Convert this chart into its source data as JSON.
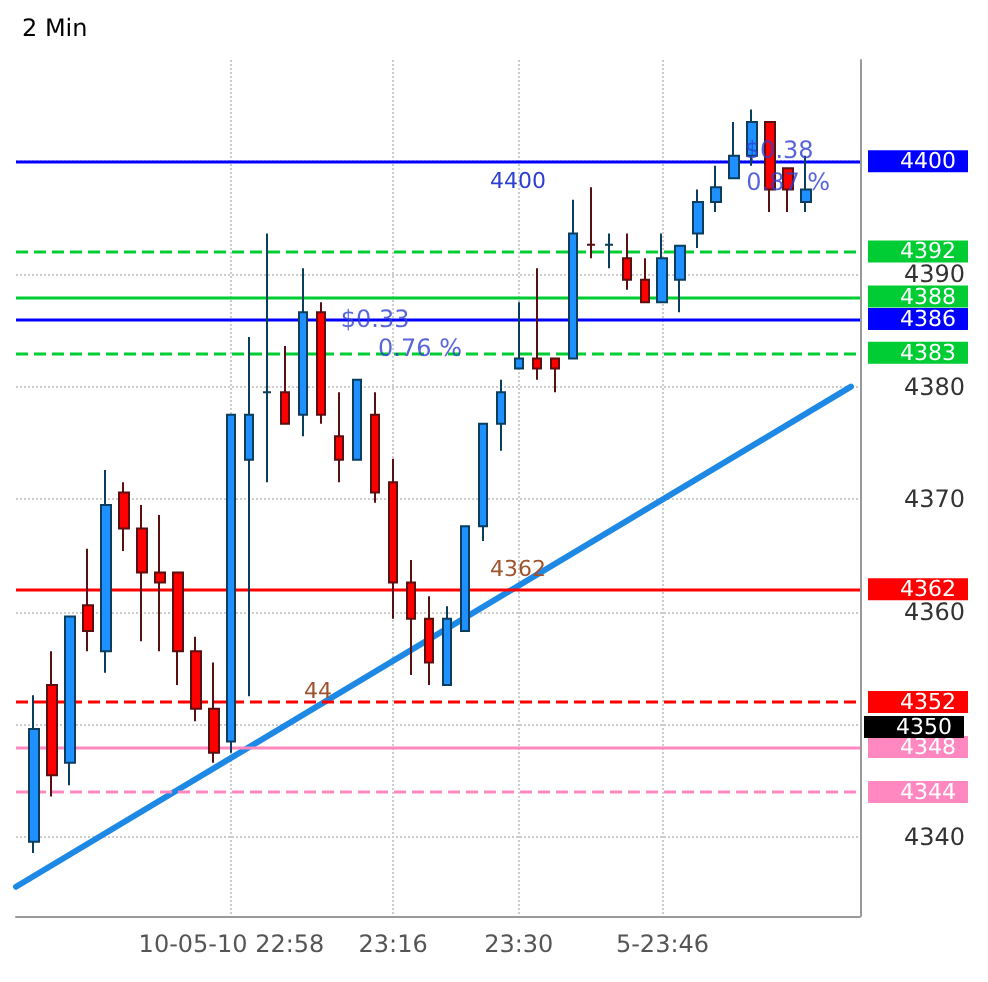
{
  "chart_data": {
    "type": "candlestick",
    "title": "2 Min",
    "x": [
      "--10-05T22:36",
      "--10-05T22:38",
      "--10-05T22:40",
      "--10-05T22:42",
      "--10-05T22:44",
      "--10-05T22:46",
      "--10-05T22:48",
      "--10-05T22:50",
      "--10-05T22:52",
      "--10-05T22:54",
      "--10-05T22:56",
      "--10-05T22:58",
      "--10-05T23:00",
      "--10-05T23:02",
      "--10-05T23:04",
      "--10-05T23:06",
      "--10-05T23:08",
      "--10-05T23:10",
      "--10-05T23:12",
      "--10-05T23:14",
      "--10-05T23:16",
      "--10-05T23:18",
      "--10-05T23:20",
      "--10-05T23:22",
      "--10-05T23:24",
      "--10-05T23:26",
      "--10-05T23:28",
      "--10-05T23:30",
      "--10-05T23:32",
      "--10-05T23:34",
      "--10-05T23:36",
      "--10-05T23:38",
      "--10-05T23:40",
      "--10-05T23:42",
      "--10-05T23:44",
      "--10-05T23:46",
      "--10-05T23:48",
      "--10-05T23:50",
      "--10-05T23:52",
      "--10-05T23:54",
      "--10-05T23:56",
      "--10-05T23:58",
      "--10-06T00:00",
      "--10-06T00:02"
    ],
    "ohlc": [
      [
        4339.6,
        4352.6,
        4338.6,
        4349.6
      ],
      [
        4353.5,
        4356.5,
        4343.6,
        4345.5
      ],
      [
        4346.6,
        4359.6,
        4344.6,
        4359.6
      ],
      [
        4360.6,
        4365.6,
        4356.5,
        4358.3
      ],
      [
        4356.5,
        4372.6,
        4354.6,
        4369.5
      ],
      [
        4370.6,
        4371.5,
        4365.4,
        4367.4
      ],
      [
        4367.4,
        4369.5,
        4357.4,
        4363.5
      ],
      [
        4363.5,
        4368.6,
        4356.5,
        4362.6
      ],
      [
        4363.5,
        4363.5,
        4353.5,
        4356.5
      ],
      [
        4356.5,
        4357.8,
        4350.3,
        4351.4
      ],
      [
        4351.4,
        4355.5,
        4346.6,
        4347.5
      ],
      [
        4348.5,
        4377.5,
        4347.5,
        4377.5
      ],
      [
        4373.5,
        4384.4,
        4352.5,
        4377.5
      ],
      [
        4379.5,
        4393.6,
        4371.5,
        4379.5
      ],
      [
        4379.5,
        4383.6,
        4376.7,
        4376.7
      ],
      [
        4377.5,
        4390.5,
        4375.6,
        4386.6
      ],
      [
        4386.6,
        4387.5,
        4376.7,
        4377.5
      ],
      [
        4375.6,
        4379.5,
        4371.5,
        4373.5
      ],
      [
        4373.5,
        4380.6,
        4373.5,
        4380.6
      ],
      [
        4377.5,
        4379.5,
        4369.7,
        4370.6
      ],
      [
        4371.5,
        4373.6,
        4359.4,
        4362.6
      ],
      [
        4362.6,
        4364.6,
        4354.4,
        4359.4
      ],
      [
        4359.4,
        4361.4,
        4353.5,
        4355.5
      ],
      [
        4353.5,
        4360.5,
        4353.5,
        4359.4
      ],
      [
        4358.3,
        4367.6,
        4358.3,
        4367.6
      ],
      [
        4367.6,
        4376.7,
        4366.3,
        4376.7
      ],
      [
        4376.7,
        4380.6,
        4374.3,
        4379.5
      ],
      [
        4381.6,
        4387.5,
        4381.6,
        4382.5
      ],
      [
        4382.5,
        4390.5,
        4380.6,
        4381.6
      ],
      [
        4382.5,
        4382.5,
        4379.5,
        4381.6
      ],
      [
        4382.5,
        4396.6,
        4382.5,
        4393.6
      ],
      [
        4392.6,
        4397.7,
        4391.4,
        4392.6
      ],
      [
        4392.6,
        4393.6,
        4390.5,
        4392.6
      ],
      [
        4391.4,
        4393.6,
        4388.6,
        4389.5
      ],
      [
        4389.5,
        4391.4,
        4387.5,
        4387.5
      ],
      [
        4387.5,
        4393.6,
        4387.5,
        4391.4
      ],
      [
        4389.5,
        4392.5,
        4386.6,
        4392.5
      ],
      [
        4393.6,
        4397.5,
        4392.3,
        4396.4
      ],
      [
        4396.4,
        4399.6,
        4395.5,
        4397.7
      ],
      [
        4398.5,
        4403.5,
        4398.5,
        4400.5
      ],
      [
        4400.5,
        4404.6,
        4399.6,
        4403.5
      ],
      [
        4403.5,
        4403.5,
        4395.5,
        4397.5
      ],
      [
        4399.4,
        4399.4,
        4395.5,
        4397.5
      ],
      [
        4396.4,
        4400.5,
        4395.5,
        4397.5
      ]
    ],
    "series": [
      {
        "type": "line",
        "color": "#1e88e5",
        "x": [
          "--10-05T22:34",
          "--10-06T00:07"
        ],
        "values": [
          4335.6,
          4380
        ]
      }
    ],
    "xlim": [
      "--10-05T22:34",
      "--10-06T00:08"
    ],
    "xticks": [
      {
        "value": "--10-05T22:58",
        "label": "10-05-10 22:58"
      },
      {
        "value": "--10-05T23:16",
        "label": "23:16"
      },
      {
        "value": "--10-05T23:30",
        "label": "23:30"
      },
      {
        "value": "--10-05T23:46",
        "label": "5-23:46"
      }
    ],
    "ylim": [
      4333,
      4409
    ],
    "yticks": [
      4340,
      {
        "value": 4350,
        "label": null
      },
      4360,
      4370,
      4380,
      4390,
      {
        "value": 4400,
        "label": null
      }
    ],
    "grid": true,
    "ref_lines": [
      {
        "axis": "y",
        "value": 4400,
        "label": "4400",
        "color": "#0000ff",
        "line_style": "solid"
      },
      {
        "axis": "y",
        "value": 4392,
        "label": "4392",
        "color": "#00cc33",
        "line_style": "dashed"
      },
      {
        "axis": "y",
        "value": 4388,
        "label": "4388",
        "color": "#00cc33",
        "line_style": "solid"
      },
      {
        "axis": "y",
        "value": 4386,
        "label": "4386",
        "color": "#0000ff",
        "line_style": "solid"
      },
      {
        "axis": "y",
        "value": 4383,
        "label": "4383",
        "color": "#00cc33",
        "line_style": "dashed"
      },
      {
        "axis": "y",
        "value": 4362,
        "label": "4362",
        "color": "#ff0000",
        "line_style": "solid"
      },
      {
        "axis": "y",
        "value": 4352,
        "label": "4352",
        "color": "#ff0000",
        "line_style": "dashed"
      },
      {
        "axis": "y",
        "value": 4348,
        "label": "4348",
        "color": "#ff88c0",
        "line_style": "solid"
      },
      {
        "axis": "y",
        "value": 4344,
        "label": "4344",
        "color": "#ff88c0",
        "line_style": "dashed"
      }
    ],
    "annotations": [
      {
        "text": "$0.33",
        "x": "--10-05T23:14",
        "y": 4386
      },
      {
        "text": "0.76 %",
        "x": "--10-05T23:19",
        "y": 4383.4
      },
      {
        "text": "$0.38",
        "x": "--10-05T23:59",
        "y": 4401
      },
      {
        "text": "0.87 %",
        "x": "--10-06T00:00",
        "y": 4398.2
      },
      "4400",
      "4362",
      "44",
      "4350"
    ]
  }
}
